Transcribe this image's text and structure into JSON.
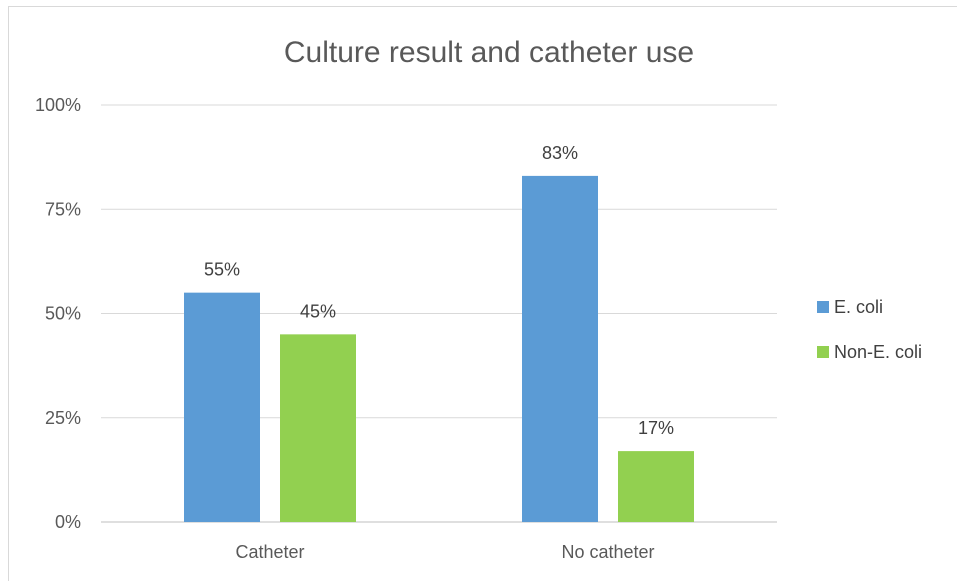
{
  "chart_data": {
    "type": "bar",
    "title": "Culture result and catheter use",
    "xlabel": "",
    "ylabel": "",
    "categories": [
      "Catheter",
      "No catheter"
    ],
    "series": [
      {
        "name": "E. coli",
        "values": [
          55,
          83
        ],
        "labels": [
          "55%",
          "83%"
        ],
        "color": "#5b9bd5"
      },
      {
        "name": "Non-E. coli",
        "values": [
          45,
          17
        ],
        "labels": [
          "45%",
          "17%"
        ],
        "color": "#92d050"
      }
    ],
    "ylim": [
      0,
      100
    ],
    "yticks": [
      0,
      25,
      50,
      75,
      100
    ],
    "ytick_labels": [
      "0%",
      "25%",
      "50%",
      "75%",
      "100%"
    ],
    "grid": true,
    "legend_position": "right",
    "colors": {
      "gridline": "#d9d9d9",
      "axis": "#bfbfbf",
      "text": "#595959"
    }
  }
}
